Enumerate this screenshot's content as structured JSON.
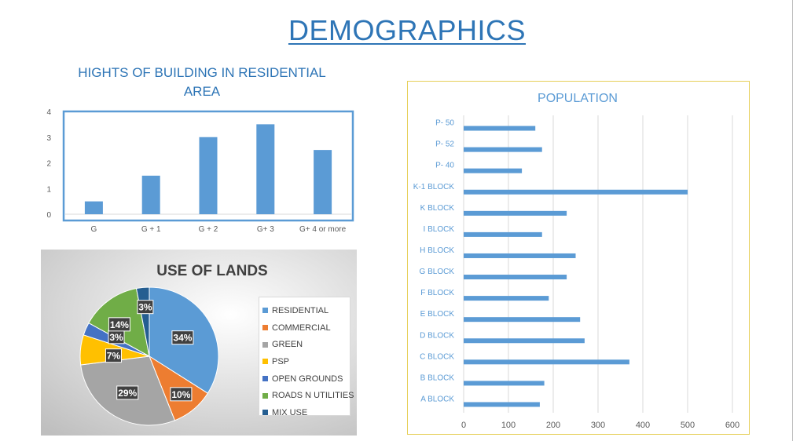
{
  "page": {
    "title": "DEMOGRAPHICS"
  },
  "chart_data": [
    {
      "type": "bar",
      "title": "HIGHTS OF BUILDING IN RESIDENTIAL AREA",
      "title_lines": [
        "HIGHTS OF BUILDING IN RESIDENTIAL",
        "AREA"
      ],
      "categories": [
        "G",
        "G + 1",
        "G + 2",
        "G+ 3",
        "G+ 4 or more"
      ],
      "values": [
        0.5,
        1.5,
        3,
        3.5,
        2.5
      ],
      "ylim": [
        0,
        4
      ],
      "yticks": [
        0,
        1,
        2,
        3,
        4
      ],
      "xlabel": "",
      "ylabel": "",
      "color": "#5b9bd5",
      "grid": false
    },
    {
      "type": "pie",
      "title": "USE OF LANDS",
      "labels": [
        "RESIDENTIAL",
        "COMMERCIAL",
        "GREEN",
        "PSP",
        "OPEN GROUNDS",
        "ROADS N UTILITIES",
        "MIX USE"
      ],
      "values": [
        34,
        10,
        29,
        7,
        3,
        14,
        3
      ],
      "value_labels": [
        "34%",
        "10%",
        "29%",
        "7%",
        "3%",
        "14%",
        "3%"
      ],
      "colors": [
        "#5b9bd5",
        "#ed7d31",
        "#a5a5a5",
        "#ffc000",
        "#4472c4",
        "#70ad47",
        "#255e91"
      ],
      "legend": "right"
    },
    {
      "type": "bar",
      "orientation": "horizontal",
      "title": "POPULATION",
      "categories": [
        "P- 50",
        "P- 52",
        "P- 40",
        "K-1 BLOCK",
        "K BLOCK",
        "I BLOCK",
        "H BLOCK",
        "G BLOCK",
        "F BLOCK",
        "E BLOCK",
        "D BLOCK",
        "C BLOCK",
        "B BLOCK",
        "A BLOCK"
      ],
      "values": [
        160,
        175,
        130,
        500,
        230,
        175,
        250,
        230,
        190,
        260,
        270,
        370,
        180,
        170
      ],
      "xlim": [
        0,
        600
      ],
      "xticks": [
        0,
        100,
        200,
        300,
        400,
        500,
        600
      ],
      "xlabel": "",
      "ylabel": "",
      "color": "#5b9bd5",
      "grid": true
    }
  ]
}
